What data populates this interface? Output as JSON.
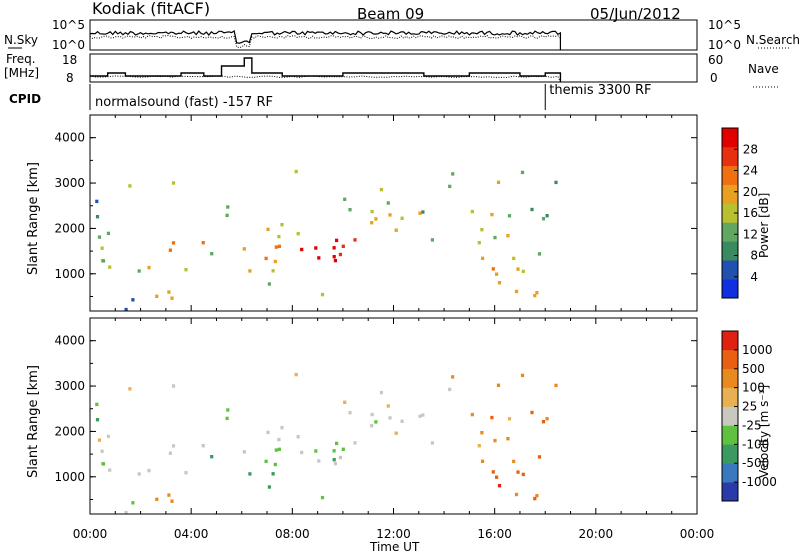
{
  "header": {
    "station": "Kodiak (fitACF)",
    "beam": "Beam 09",
    "date": "05/Jun/2012"
  },
  "panels": {
    "nsky": {
      "left_label": "N.Sky",
      "right_label": "N.Search",
      "left_ticks": [
        "10^5",
        "10^0"
      ],
      "right_ticks": [
        "10^5",
        "10^0"
      ]
    },
    "freq": {
      "left_label_1": "Freq.",
      "left_label_2": "[MHz]",
      "right_label": "Nave",
      "left_ticks": [
        "18",
        "8"
      ],
      "right_ticks": [
        "60",
        "0"
      ]
    },
    "cpid": {
      "label": "CPID",
      "mode_1": "normalsound (fast) -157 RF",
      "mode_2": "themis 3300 RF",
      "mode_2_start_hour": 18.0
    }
  },
  "chart_data": [
    {
      "type": "heatmap",
      "title": "Power",
      "ylabel": "Slant Range [km]",
      "xlabel": "Time UT",
      "x_ticks": [
        "00:00",
        "04:00",
        "08:00",
        "12:00",
        "16:00",
        "20:00",
        "00:00"
      ],
      "y_ticks": [
        "1000",
        "2000",
        "3000",
        "4000"
      ],
      "xlim_hours": [
        0,
        24
      ],
      "ylim_km": [
        180,
        4500
      ],
      "colorbar": {
        "label": "Power [dB]",
        "ticks": [
          "4",
          "8",
          "12",
          "16",
          "20",
          "24",
          "28"
        ],
        "colors": [
          "#1030e0",
          "#2050b0",
          "#3a8a60",
          "#60a860",
          "#b8c030",
          "#e8a020",
          "#f07010",
          "#e83010",
          "#e00000"
        ]
      }
    },
    {
      "type": "heatmap",
      "title": "Velocity",
      "ylabel": "Slant Range [km]",
      "xlabel": "Time UT",
      "x_ticks": [
        "00:00",
        "04:00",
        "08:00",
        "12:00",
        "16:00",
        "20:00",
        "00:00"
      ],
      "y_ticks": [
        "1000",
        "2000",
        "3000",
        "4000"
      ],
      "xlim_hours": [
        0,
        24
      ],
      "ylim_km": [
        180,
        4500
      ],
      "colorbar": {
        "label": "Velocity [m s⁻¹]",
        "ticks": [
          "1000",
          "500",
          "100",
          "25",
          "-25",
          "-100",
          "-500",
          "-1000"
        ],
        "colors": [
          "#2a3aa8",
          "#3a78c0",
          "#3a9a60",
          "#60c040",
          "#c8c8c0",
          "#e8b050",
          "#e88a20",
          "#e86010",
          "#e02010"
        ]
      }
    }
  ],
  "colors": {
    "ground_scatter": "#c8c8c0",
    "frame": "#000000"
  }
}
